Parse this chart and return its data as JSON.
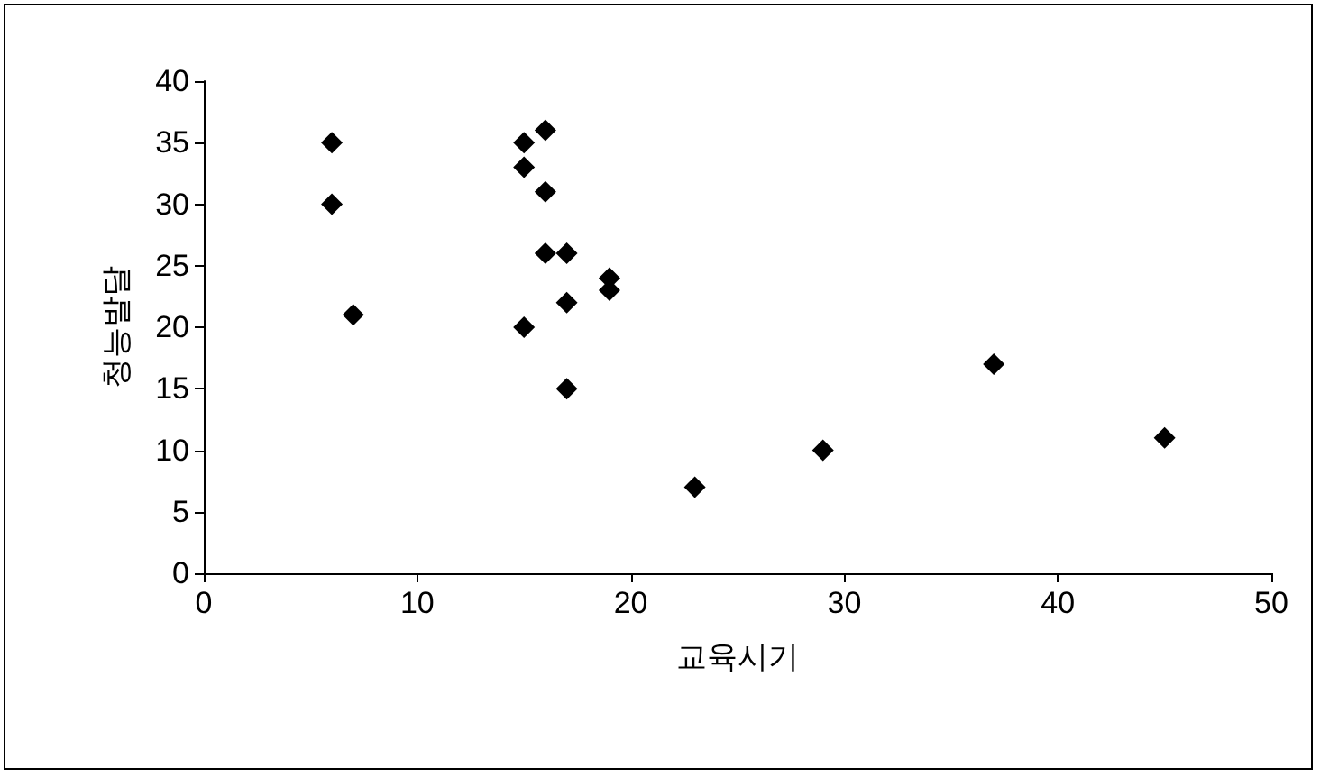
{
  "chart_data": {
    "type": "scatter",
    "xlabel": "교육시기",
    "ylabel": "청능발달",
    "x": [
      6,
      6,
      7,
      15,
      15,
      16,
      16,
      16,
      17,
      19,
      19,
      17,
      15,
      17,
      23,
      29,
      37,
      45
    ],
    "values": [
      35,
      30,
      21,
      35,
      33,
      36,
      31,
      26,
      26,
      24,
      23,
      22,
      20,
      15,
      7,
      10,
      17,
      11
    ],
    "color": "#000000",
    "marker": "diamond",
    "grid": false,
    "xlim": [
      0,
      50
    ],
    "xticks": [
      0,
      10,
      20,
      30,
      40,
      50
    ],
    "ylim": [
      0,
      40
    ],
    "yticks": [
      0,
      5,
      10,
      15,
      20,
      25,
      30,
      35,
      40
    ]
  }
}
